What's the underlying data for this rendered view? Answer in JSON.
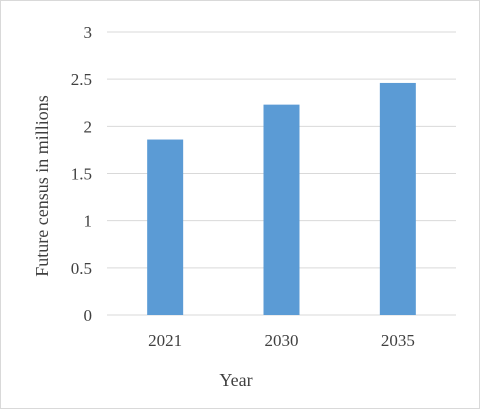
{
  "chart_data": {
    "type": "bar",
    "categories": [
      "2021",
      "2030",
      "2035"
    ],
    "values": [
      1.86,
      2.23,
      2.46
    ],
    "xlabel": "Year",
    "ylabel": "Future census in millions",
    "ylim": [
      0,
      3
    ],
    "yticks": [
      "0",
      "0.5",
      "1",
      "1.5",
      "2",
      "2.5",
      "3"
    ],
    "grid": true,
    "legend": "none",
    "bar_color": "#5b9bd5",
    "gridline_color": "#d9d9d9"
  }
}
